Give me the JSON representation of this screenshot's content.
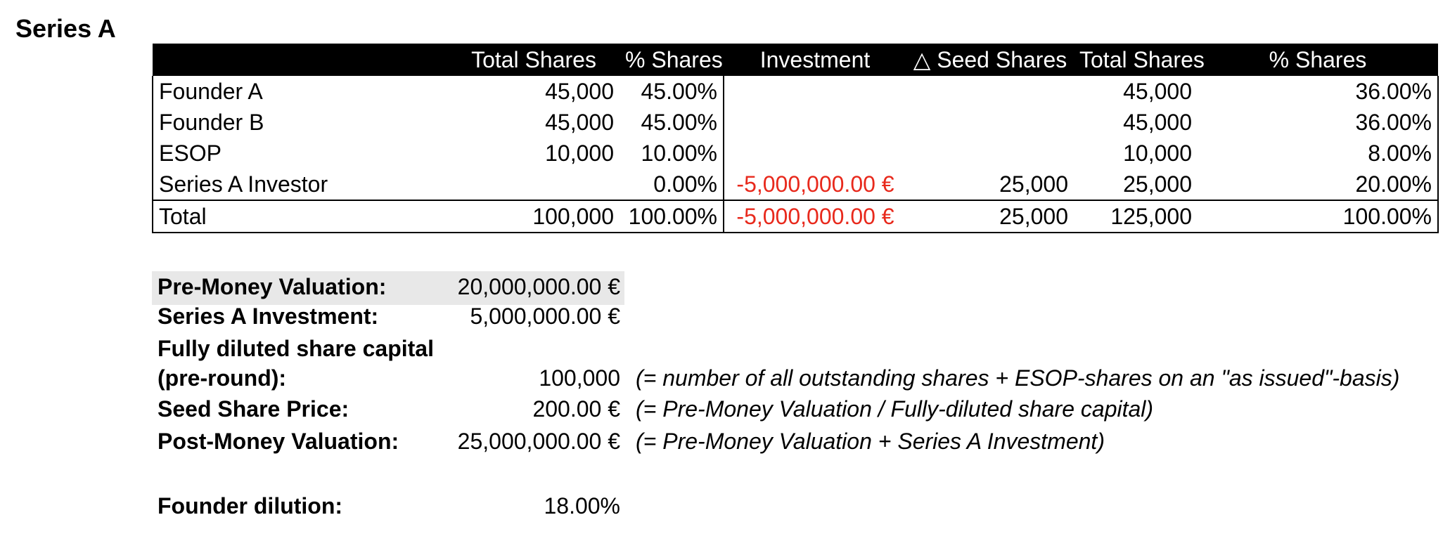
{
  "title": "Series A",
  "table": {
    "headers": [
      "",
      "Total Shares",
      "% Shares",
      "Investment",
      "△ Seed Shares",
      "Total Shares",
      "% Shares"
    ],
    "rows": [
      {
        "name": "Founder A",
        "total_shares": "45,000",
        "pct_shares": "45.00%",
        "investment": "",
        "delta_seed": "",
        "total_shares_post": "45,000",
        "pct_shares_post": "36.00%"
      },
      {
        "name": "Founder B",
        "total_shares": "45,000",
        "pct_shares": "45.00%",
        "investment": "",
        "delta_seed": "",
        "total_shares_post": "45,000",
        "pct_shares_post": "36.00%"
      },
      {
        "name": "ESOP",
        "total_shares": "10,000",
        "pct_shares": "10.00%",
        "investment": "",
        "delta_seed": "",
        "total_shares_post": "10,000",
        "pct_shares_post": "8.00%"
      },
      {
        "name": "Series A Investor",
        "total_shares": "",
        "pct_shares": "0.00%",
        "investment": "-5,000,000.00 €",
        "delta_seed": "25,000",
        "total_shares_post": "25,000",
        "pct_shares_post": "20.00%"
      }
    ],
    "total": {
      "name": "Total",
      "total_shares": "100,000",
      "pct_shares": "100.00%",
      "investment": "-5,000,000.00 €",
      "delta_seed": "25,000",
      "total_shares_post": "125,000",
      "pct_shares_post": "100.00%"
    }
  },
  "summary": {
    "pre_money_label": "Pre-Money Valuation:",
    "pre_money_value": "20,000,000.00 €",
    "investment_label": "Series A Investment:",
    "investment_value": "5,000,000.00 €",
    "share_capital_label_1": "Fully diluted share capital",
    "share_capital_label_2": "(pre-round):",
    "share_capital_value": "100,000",
    "share_capital_note": "(= number of all outstanding shares + ESOP-shares on an \"as issued\"-basis)",
    "share_price_label": "Seed Share Price:",
    "share_price_value": "200.00 €",
    "share_price_note": "(= Pre-Money Valuation / Fully-diluted share capital)",
    "post_money_label": "Post-Money Valuation:",
    "post_money_value": "25,000,000.00 €",
    "post_money_note": "(= Pre-Money Valuation + Series A Investment)",
    "dilution_label": "Founder dilution:",
    "dilution_value": "18.00%"
  },
  "colors": {
    "negative": "#e8291c",
    "header_bg": "#000000",
    "highlight": "#e8e8e8"
  }
}
